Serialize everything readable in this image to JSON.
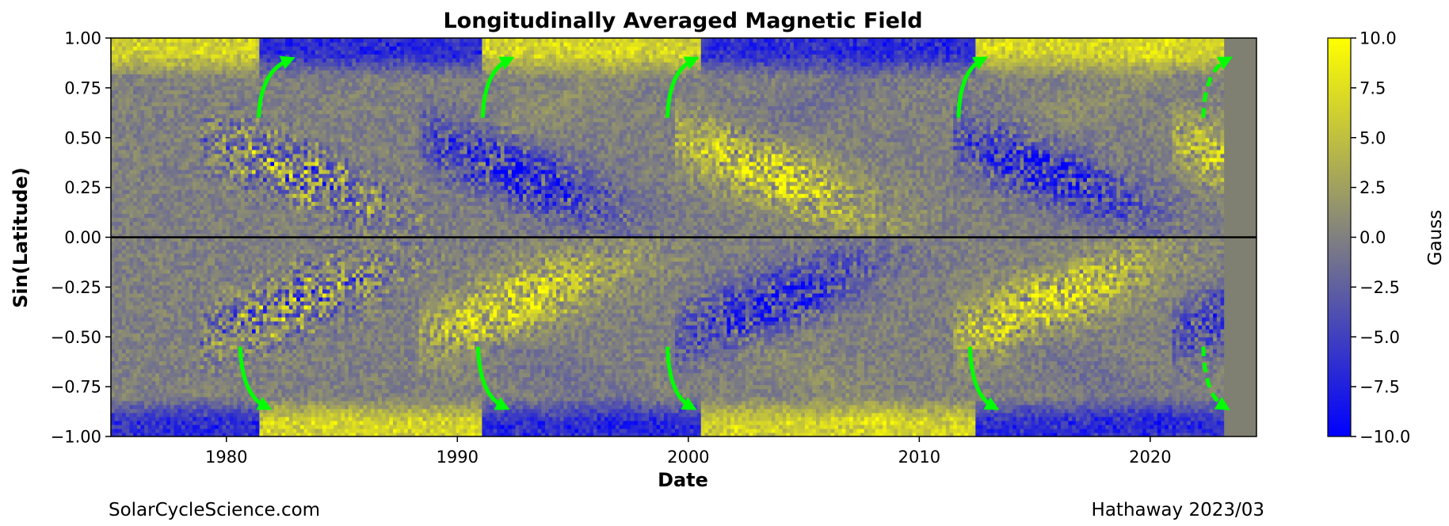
{
  "chart_data": {
    "type": "heatmap",
    "title": "Longitudinally Averaged Magnetic Field",
    "xlabel": "Date",
    "ylabel": "Sin(Latitude)",
    "xlim": [
      1975,
      2024.6
    ],
    "ylim": [
      -1.0,
      1.0
    ],
    "x_ticks": [
      1980,
      1990,
      2000,
      2010,
      2020
    ],
    "x_tick_labels": [
      "1980",
      "1990",
      "2000",
      "2010",
      "2020"
    ],
    "y_ticks": [
      1.0,
      0.75,
      0.5,
      0.25,
      0.0,
      -0.25,
      -0.5,
      -0.75,
      -1.0
    ],
    "y_tick_labels": [
      "1.00",
      "0.75",
      "0.50",
      "0.25",
      "0.00",
      "−0.25",
      "−0.50",
      "−0.75",
      "−1.00"
    ],
    "data_end_x": 2023.2,
    "no_data_color": "#7f7f72",
    "equator_line_y": 0.0,
    "colorbar": {
      "label": "Gauss",
      "range": [
        -10.0,
        10.0
      ],
      "ticks": [
        10.0,
        7.5,
        5.0,
        2.5,
        0.0,
        -2.5,
        -5.0,
        -7.5,
        -10.0
      ],
      "tick_labels": [
        "10.0",
        "7.5",
        "5.0",
        "2.5",
        "0.0",
        "−2.5",
        "−5.0",
        "−7.5",
        "−10.0"
      ],
      "colors": [
        "#0000ff",
        "#808080",
        "#ffff00"
      ]
    },
    "butterfly_wings": [
      {
        "year": 1980.5,
        "north_polarity": "mixed",
        "south_polarity": "mixed"
      },
      {
        "year": 1990.0,
        "north_polarity": "negative",
        "south_polarity": "positive"
      },
      {
        "year": 2001.0,
        "north_polarity": "positive",
        "south_polarity": "negative"
      },
      {
        "year": 2013.0,
        "north_polarity": "negative",
        "south_polarity": "positive"
      },
      {
        "year": 2022.5,
        "north_polarity": "positive",
        "south_polarity": "negative"
      }
    ],
    "polar_field_epochs": [
      {
        "x": [
          1975,
          1981.5
        ],
        "north": "positive",
        "south": "negative"
      },
      {
        "x": [
          1981.5,
          1991.0
        ],
        "north": "negative",
        "south": "positive"
      },
      {
        "x": [
          1991.0,
          2000.5
        ],
        "north": "positive",
        "south": "negative"
      },
      {
        "x": [
          2000.5,
          2012.5
        ],
        "north": "negative",
        "south": "positive"
      },
      {
        "x": [
          2012.5,
          2023.2
        ],
        "north": "positive",
        "south": "negative"
      }
    ],
    "annotation_arrows": {
      "color": "#00ff00",
      "north": [
        {
          "x": [
            1981.4,
            1982.7
          ],
          "y": [
            0.6,
            0.89
          ],
          "style": "solid"
        },
        {
          "x": [
            1991.1,
            1992.2
          ],
          "y": [
            0.6,
            0.89
          ],
          "style": "solid"
        },
        {
          "x": [
            1999.1,
            2000.2
          ],
          "y": [
            0.6,
            0.89
          ],
          "style": "solid"
        },
        {
          "x": [
            2011.7,
            2012.7
          ],
          "y": [
            0.6,
            0.89
          ],
          "style": "solid"
        },
        {
          "x": [
            2022.3,
            2023.3
          ],
          "y": [
            0.6,
            0.89
          ],
          "style": "dashed"
        }
      ],
      "south": [
        {
          "x": [
            1980.6,
            1981.7
          ],
          "y": [
            -0.55,
            -0.85
          ],
          "style": "solid"
        },
        {
          "x": [
            1990.9,
            1992.0
          ],
          "y": [
            -0.55,
            -0.85
          ],
          "style": "solid"
        },
        {
          "x": [
            1999.1,
            2000.1
          ],
          "y": [
            -0.55,
            -0.85
          ],
          "style": "solid"
        },
        {
          "x": [
            2012.2,
            2013.2
          ],
          "y": [
            -0.55,
            -0.85
          ],
          "style": "solid"
        },
        {
          "x": [
            2022.3,
            2023.2
          ],
          "y": [
            -0.55,
            -0.85
          ],
          "style": "dashed"
        }
      ]
    }
  },
  "footer": {
    "left": "SolarCycleScience.com",
    "right": "Hathaway 2023/03"
  }
}
